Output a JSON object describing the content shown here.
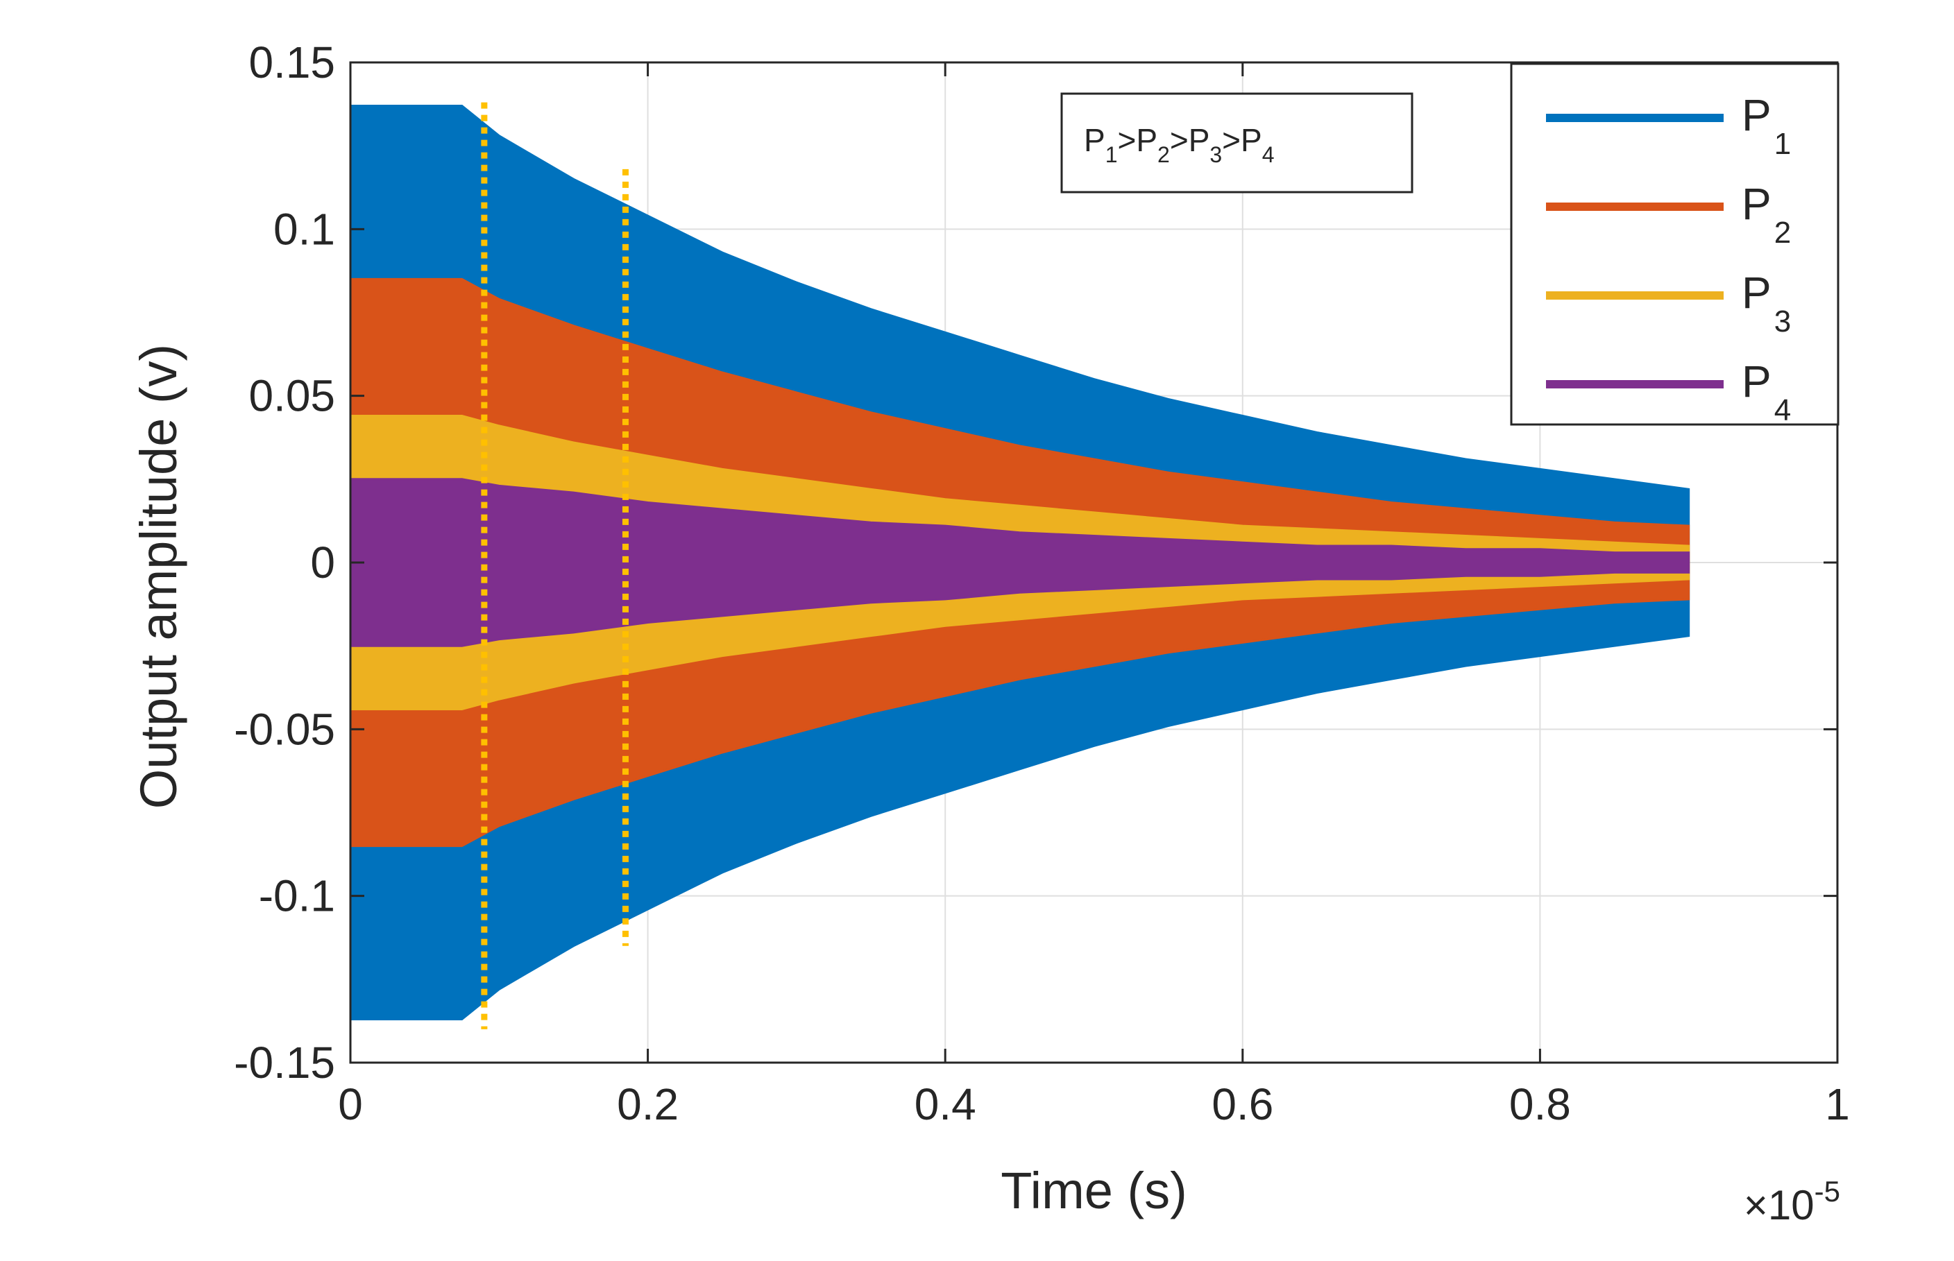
{
  "chart_data": {
    "type": "area",
    "title": "",
    "xlabel": "Time (s)",
    "ylabel": "Output amplitude (v)",
    "x_scale_label": {
      "base": "×10",
      "exponent": "-5"
    },
    "xlim": [
      0,
      1
    ],
    "ylim": [
      -0.15,
      0.15
    ],
    "x_ticks": [
      0,
      0.2,
      0.4,
      0.6,
      0.8,
      1
    ],
    "x_tick_labels": [
      "0",
      "0.2",
      "0.4",
      "0.6",
      "0.8",
      "1"
    ],
    "y_ticks": [
      -0.15,
      -0.1,
      -0.05,
      0,
      0.05,
      0.1,
      0.15
    ],
    "y_tick_labels": [
      "-0.15",
      "-0.1",
      "-0.05",
      "0",
      "0.05",
      "0.1",
      "0.15"
    ],
    "grid": true,
    "legend_position": "top-right",
    "x": [
      0,
      0.075,
      0.1,
      0.15,
      0.2,
      0.25,
      0.3,
      0.35,
      0.4,
      0.45,
      0.5,
      0.55,
      0.6,
      0.65,
      0.7,
      0.75,
      0.8,
      0.85,
      0.9
    ],
    "series": [
      {
        "name": "P",
        "sub": "1",
        "color": "#0072BD",
        "amplitude": [
          0.137,
          0.137,
          0.128,
          0.115,
          0.104,
          0.093,
          0.084,
          0.076,
          0.069,
          0.062,
          0.055,
          0.049,
          0.044,
          0.039,
          0.035,
          0.031,
          0.028,
          0.025,
          0.022
        ]
      },
      {
        "name": "P",
        "sub": "2",
        "color": "#D95319",
        "amplitude": [
          0.085,
          0.085,
          0.079,
          0.071,
          0.064,
          0.057,
          0.051,
          0.045,
          0.04,
          0.035,
          0.031,
          0.027,
          0.024,
          0.021,
          0.018,
          0.016,
          0.014,
          0.012,
          0.011
        ]
      },
      {
        "name": "P",
        "sub": "3",
        "color": "#EDB120",
        "amplitude": [
          0.044,
          0.044,
          0.041,
          0.036,
          0.032,
          0.028,
          0.025,
          0.022,
          0.019,
          0.017,
          0.015,
          0.013,
          0.011,
          0.01,
          0.009,
          0.008,
          0.007,
          0.006,
          0.005
        ]
      },
      {
        "name": "P",
        "sub": "4",
        "color": "#7E2F8E",
        "amplitude": [
          0.025,
          0.025,
          0.023,
          0.021,
          0.018,
          0.016,
          0.014,
          0.012,
          0.011,
          0.009,
          0.008,
          0.007,
          0.006,
          0.005,
          0.005,
          0.004,
          0.004,
          0.003,
          0.003
        ]
      }
    ],
    "markers": [
      {
        "x": 0.09,
        "y_range": [
          -0.14,
          0.138
        ],
        "color": "#FFC000",
        "style": "dotted"
      },
      {
        "x": 0.185,
        "y_range": [
          -0.115,
          0.118
        ],
        "color": "#FFC000",
        "style": "dotted"
      }
    ],
    "annotation": {
      "parts": [
        {
          "t": "P",
          "s": "1"
        },
        {
          "t": ">P",
          "s": "2"
        },
        {
          "t": ">P",
          "s": "3"
        },
        {
          "t": ">P",
          "s": "4"
        }
      ]
    }
  }
}
